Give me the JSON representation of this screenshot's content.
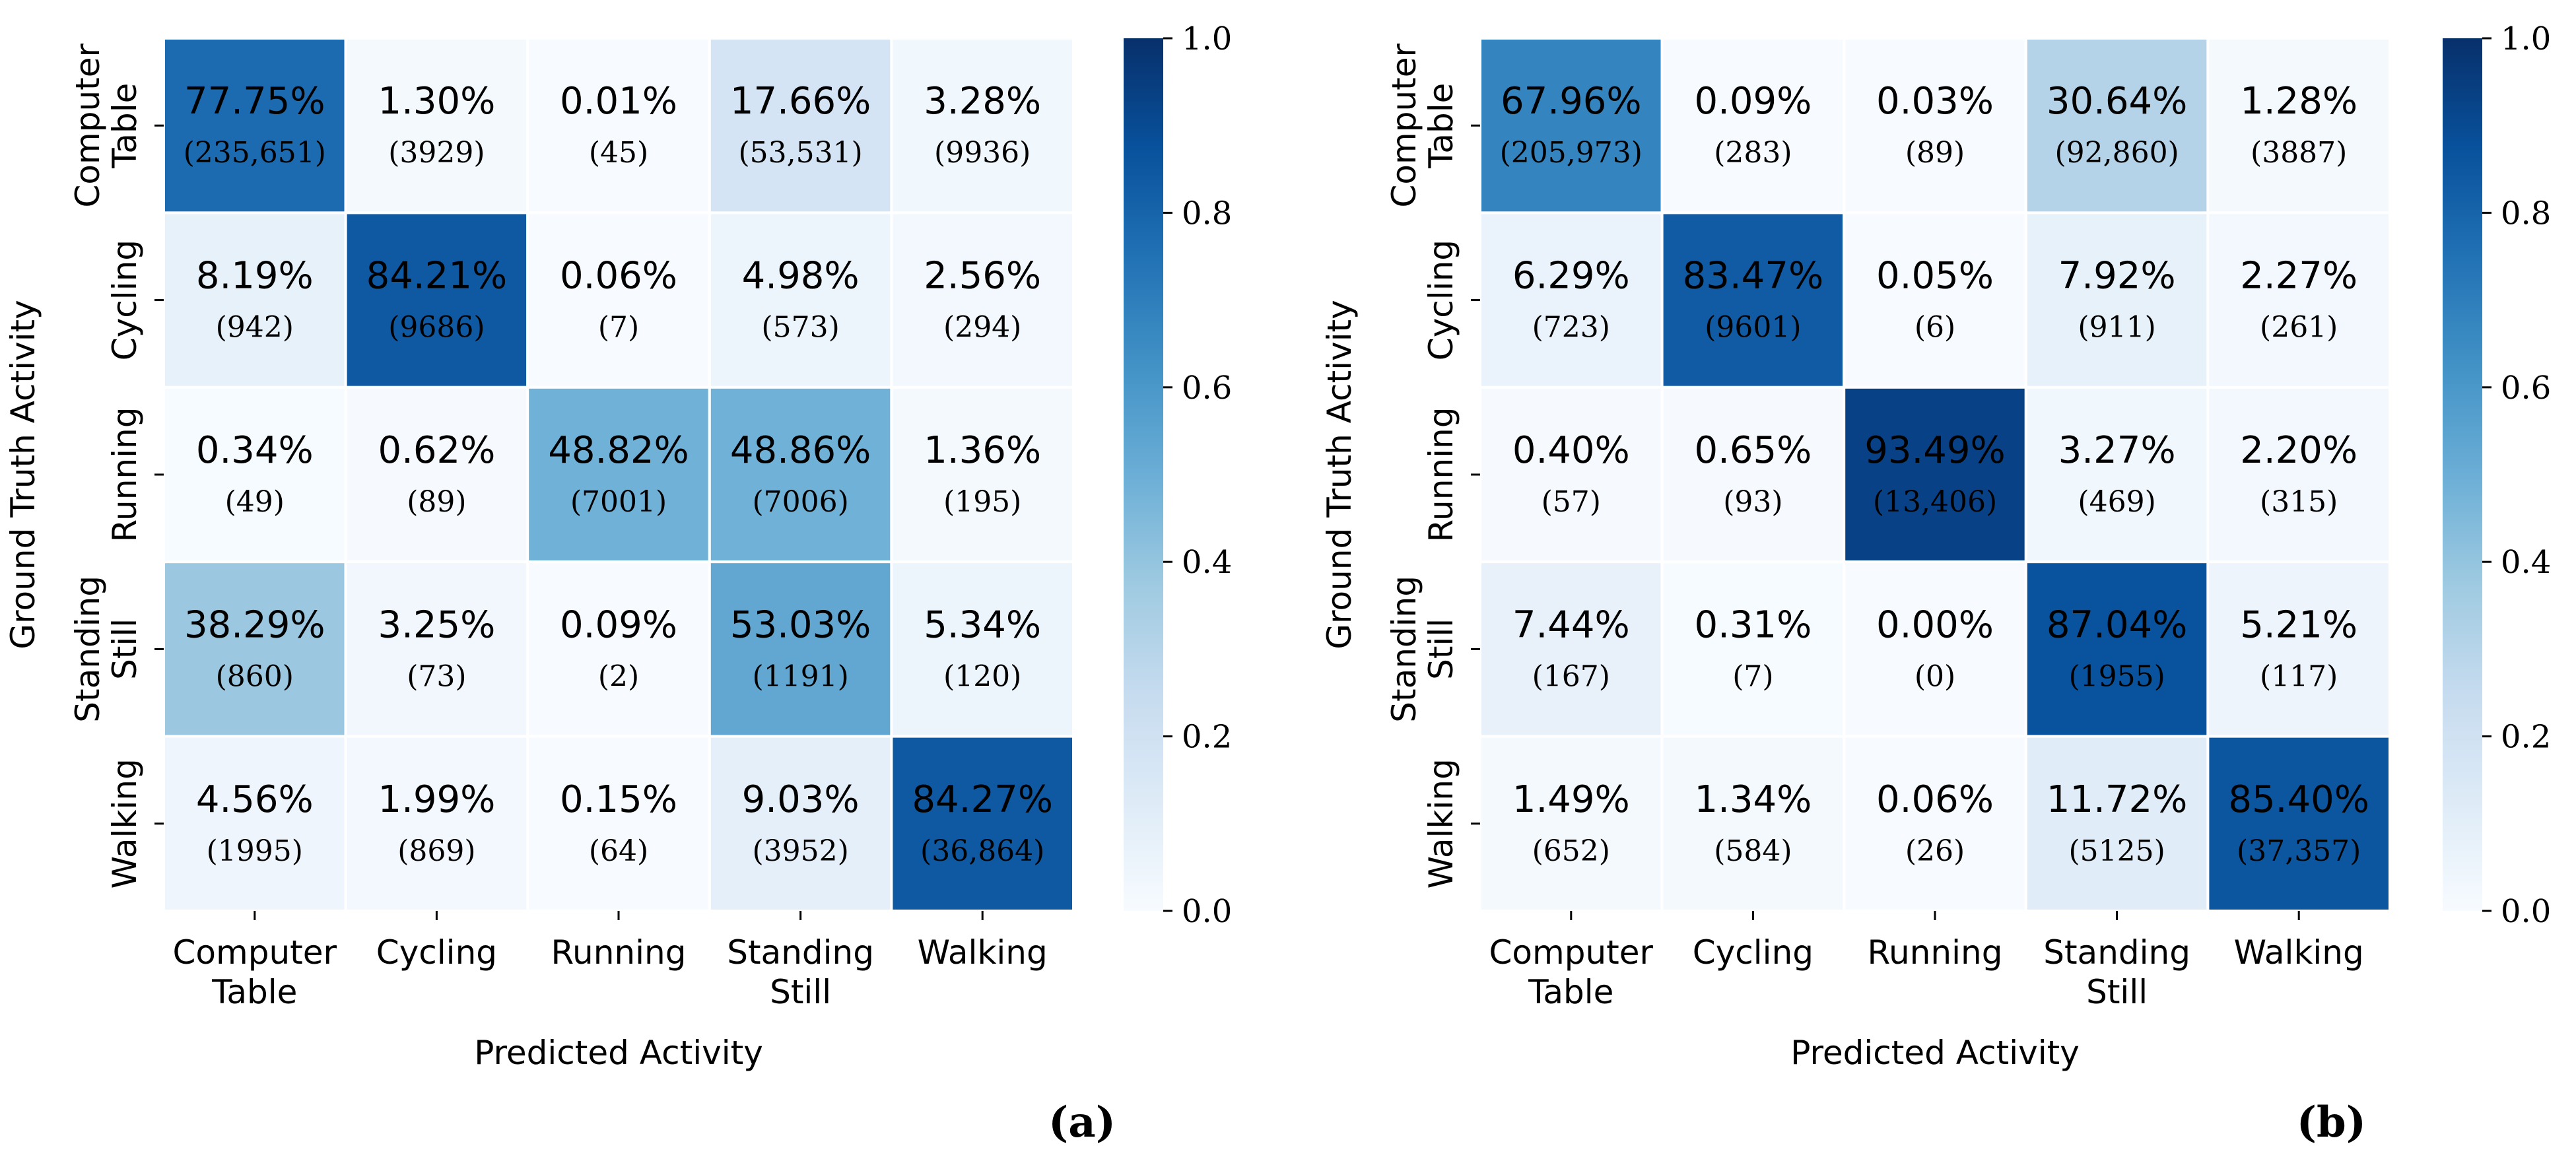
{
  "chart_data": [
    {
      "type": "heatmap",
      "panel_label": "(a)",
      "xlabel": "Predicted Activity",
      "ylabel": "Ground Truth Activity",
      "x_categories": [
        [
          "Computer",
          "Table"
        ],
        [
          "Cycling"
        ],
        [
          "Running"
        ],
        [
          "Standing",
          "Still"
        ],
        [
          "Walking"
        ]
      ],
      "y_categories": [
        [
          "Computer",
          "Table"
        ],
        [
          "Cycling"
        ],
        [
          "Running"
        ],
        [
          "Standing",
          "Still"
        ],
        [
          "Walking"
        ]
      ],
      "colorbar": {
        "range": [
          0,
          1
        ],
        "ticks": [
          "0.0",
          "0.2",
          "0.4",
          "0.6",
          "0.8",
          "1.0"
        ],
        "colormap": "Blues"
      },
      "values": [
        [
          0.7775,
          0.013,
          0.0001,
          0.1766,
          0.0328
        ],
        [
          0.0819,
          0.8421,
          0.0006,
          0.0498,
          0.0256
        ],
        [
          0.0034,
          0.0062,
          0.4882,
          0.4886,
          0.0136
        ],
        [
          0.3829,
          0.0325,
          0.0009,
          0.5303,
          0.0534
        ],
        [
          0.0456,
          0.0199,
          0.0015,
          0.0903,
          0.8427
        ]
      ],
      "percent_labels": [
        [
          "77.75%",
          "1.30%",
          "0.01%",
          "17.66%",
          "3.28%"
        ],
        [
          "8.19%",
          "84.21%",
          "0.06%",
          "4.98%",
          "2.56%"
        ],
        [
          "0.34%",
          "0.62%",
          "48.82%",
          "48.86%",
          "1.36%"
        ],
        [
          "38.29%",
          "3.25%",
          "0.09%",
          "53.03%",
          "5.34%"
        ],
        [
          "4.56%",
          "1.99%",
          "0.15%",
          "9.03%",
          "84.27%"
        ]
      ],
      "count_labels": [
        [
          "(235,651)",
          "(3929)",
          "(45)",
          "(53,531)",
          "(9936)"
        ],
        [
          "(942)",
          "(9686)",
          "(7)",
          "(573)",
          "(294)"
        ],
        [
          "(49)",
          "(89)",
          "(7001)",
          "(7006)",
          "(195)"
        ],
        [
          "(860)",
          "(73)",
          "(2)",
          "(1191)",
          "(120)"
        ],
        [
          "(1995)",
          "(869)",
          "(64)",
          "(3952)",
          "(36,864)"
        ]
      ]
    },
    {
      "type": "heatmap",
      "panel_label": "(b)",
      "xlabel": "Predicted Activity",
      "ylabel": "Ground Truth Activity",
      "x_categories": [
        [
          "Computer",
          "Table"
        ],
        [
          "Cycling"
        ],
        [
          "Running"
        ],
        [
          "Standing",
          "Still"
        ],
        [
          "Walking"
        ]
      ],
      "y_categories": [
        [
          "Computer",
          "Table"
        ],
        [
          "Cycling"
        ],
        [
          "Running"
        ],
        [
          "Standing",
          "Still"
        ],
        [
          "Walking"
        ]
      ],
      "colorbar": {
        "range": [
          0,
          1
        ],
        "ticks": [
          "0.0",
          "0.2",
          "0.4",
          "0.6",
          "0.8",
          "1.0"
        ],
        "colormap": "Blues"
      },
      "values": [
        [
          0.6796,
          0.0009,
          0.0003,
          0.3064,
          0.0128
        ],
        [
          0.0629,
          0.8347,
          0.0005,
          0.0792,
          0.0227
        ],
        [
          0.004,
          0.0065,
          0.9349,
          0.0327,
          0.022
        ],
        [
          0.0744,
          0.0031,
          0.0,
          0.8704,
          0.0521
        ],
        [
          0.0149,
          0.0134,
          0.0006,
          0.1172,
          0.854
        ]
      ],
      "percent_labels": [
        [
          "67.96%",
          "0.09%",
          "0.03%",
          "30.64%",
          "1.28%"
        ],
        [
          "6.29%",
          "83.47%",
          "0.05%",
          "7.92%",
          "2.27%"
        ],
        [
          "0.40%",
          "0.65%",
          "93.49%",
          "3.27%",
          "2.20%"
        ],
        [
          "7.44%",
          "0.31%",
          "0.00%",
          "87.04%",
          "5.21%"
        ],
        [
          "1.49%",
          "1.34%",
          "0.06%",
          "11.72%",
          "85.40%"
        ]
      ],
      "count_labels": [
        [
          "(205,973)",
          "(283)",
          "(89)",
          "(92,860)",
          "(3887)"
        ],
        [
          "(723)",
          "(9601)",
          "(6)",
          "(911)",
          "(261)"
        ],
        [
          "(57)",
          "(93)",
          "(13,406)",
          "(469)",
          "(315)"
        ],
        [
          "(167)",
          "(7)",
          "(0)",
          "(1955)",
          "(117)"
        ],
        [
          "(652)",
          "(584)",
          "(26)",
          "(5125)",
          "(37,357)"
        ]
      ]
    }
  ]
}
